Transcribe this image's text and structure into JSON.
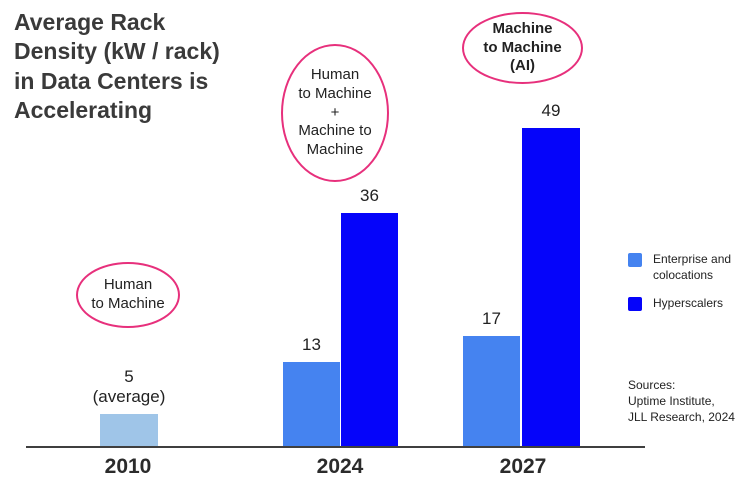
{
  "title": {
    "text": "Average Rack\nDensity (kW / rack)\nin Data Centers is\nAccelerating"
  },
  "annotations": [
    {
      "id": "human-to-machine",
      "text": "Human\nto Machine",
      "bold": false
    },
    {
      "id": "human-to-machine-plus-machine-to-machine",
      "text": "Human\nto Machine\n+\nMachine to\nMachine",
      "bold": false
    },
    {
      "id": "machine-to-machine-ai",
      "text": "Machine\nto Machine\n(AI)",
      "bold": true
    }
  ],
  "chart_data": {
    "type": "bar",
    "title": "Average Rack Density (kW / rack) in Data Centers is Accelerating",
    "categories": [
      "2010",
      "2024",
      "2027"
    ],
    "series": [
      {
        "name": "Average (2010)",
        "color": "#9fc5e8",
        "values": [
          5,
          null,
          null
        ]
      },
      {
        "name": "Enterprise and colocations",
        "color": "#4583f0",
        "values": [
          null,
          13,
          17
        ]
      },
      {
        "name": "Hyperscalers",
        "color": "#0504fa",
        "values": [
          null,
          36,
          49
        ]
      }
    ],
    "bars": [
      {
        "category": "2010",
        "series": "Average (2010)",
        "value": 5,
        "label": "5\n(average)",
        "color": "#9fc5e8"
      },
      {
        "category": "2024",
        "series": "Enterprise and colocations",
        "value": 13,
        "label": "13",
        "color": "#4583f0"
      },
      {
        "category": "2024",
        "series": "Hyperscalers",
        "value": 36,
        "label": "36",
        "color": "#0504fa"
      },
      {
        "category": "2027",
        "series": "Enterprise and colocations",
        "value": 17,
        "label": "17",
        "color": "#4583f0"
      },
      {
        "category": "2027",
        "series": "Hyperscalers",
        "value": 49,
        "label": "49",
        "color": "#0504fa"
      }
    ],
    "ylim": [
      0,
      55
    ],
    "grid": false,
    "legend_position": "right"
  },
  "legend": {
    "items": [
      {
        "label": "Enterprise and\ncolocations",
        "color": "#4583f0"
      },
      {
        "label": "Hyperscalers",
        "color": "#0504fa"
      }
    ]
  },
  "sources": {
    "text": "Sources:\nUptime Institute,\nJLL Research, 2024"
  },
  "colors": {
    "annotation_stroke": "#e7307c",
    "axis": "#3f3f3f",
    "text": "#2e2e2e"
  }
}
